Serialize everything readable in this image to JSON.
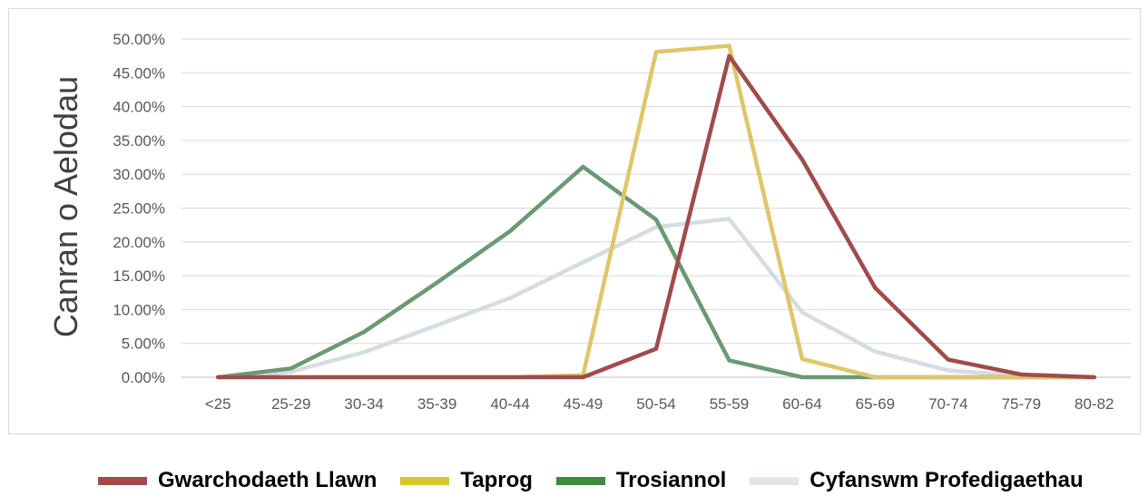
{
  "chart_data": {
    "type": "line",
    "ylabel": "Canran o Aelodau",
    "xlabel": "",
    "categories": [
      "<25",
      "25-29",
      "30-34",
      "35-39",
      "40-44",
      "45-49",
      "50-54",
      "55-59",
      "60-64",
      "65-69",
      "70-74",
      "75-79",
      "80-82"
    ],
    "y_ticks": [
      "0.00%",
      "5.00%",
      "10.00%",
      "15.00%",
      "20.00%",
      "25.00%",
      "30.00%",
      "35.00%",
      "40.00%",
      "45.00%",
      "50.00%"
    ],
    "ylim": [
      0,
      50
    ],
    "grid": true,
    "legend_position": "bottom",
    "series": [
      {
        "name": "Gwarchodaeth Llawn",
        "color": "#a04b4b",
        "values": [
          0,
          0,
          0,
          0,
          0,
          0,
          4.2,
          47.5,
          32.2,
          13.2,
          2.6,
          0.4,
          0
        ]
      },
      {
        "name": "Taprog",
        "color": "#dfc66a",
        "values": [
          0,
          0,
          0,
          0,
          0,
          0.3,
          48.1,
          49.0,
          2.7,
          0,
          0,
          0,
          0
        ]
      },
      {
        "name": "Trosiannol",
        "color": "#6a9a73",
        "values": [
          0,
          1.3,
          6.7,
          14.0,
          21.6,
          31.1,
          23.3,
          2.5,
          0,
          0,
          0,
          0,
          0
        ]
      },
      {
        "name": "Cyfanswm Profedigaethau",
        "color": "#d3dde3",
        "values": [
          0,
          0.8,
          3.7,
          7.7,
          11.7,
          17.0,
          22.2,
          23.4,
          9.6,
          3.8,
          1.0,
          0.2,
          0
        ]
      }
    ],
    "legend_swatch_colors": [
      "#a04b4b",
      "#d4c62c",
      "#3f8a3f",
      "#e3e6e8"
    ]
  }
}
